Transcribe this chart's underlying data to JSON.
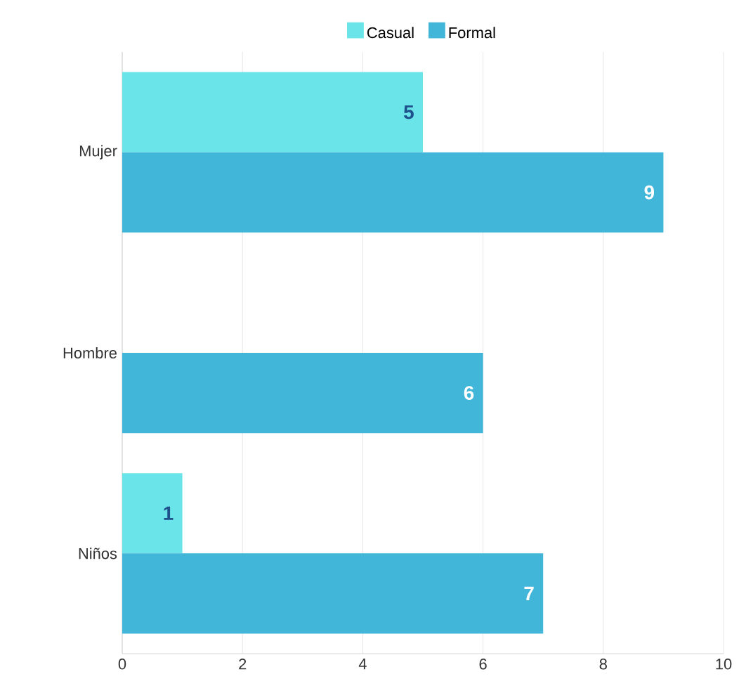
{
  "chart_data": {
    "type": "bar",
    "orientation": "horizontal",
    "categories": [
      "Mujer",
      "Hombre",
      "Niños"
    ],
    "series": [
      {
        "name": "Casual",
        "color": "#6ae4e9",
        "values": [
          5,
          null,
          1
        ]
      },
      {
        "name": "Formal",
        "color": "#41b6d9",
        "values": [
          9,
          6,
          7
        ]
      }
    ],
    "xlim": [
      0,
      10
    ],
    "xticks": [
      0,
      2,
      4,
      6,
      8,
      10
    ],
    "grid": "x",
    "legend": "top",
    "data_labels": true
  }
}
